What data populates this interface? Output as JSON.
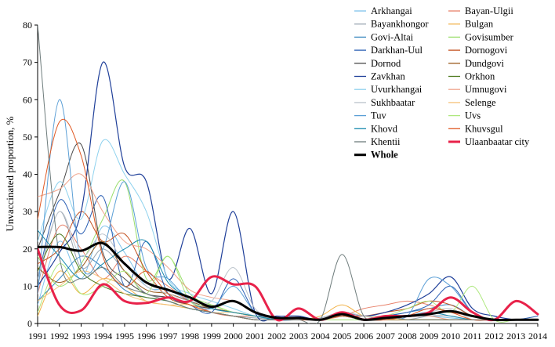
{
  "chart_data": {
    "type": "line",
    "title": "",
    "xlabel": "",
    "ylabel": "Unvaccinated proportion, %",
    "ylim": [
      0,
      80
    ],
    "yticks": [
      0,
      10,
      20,
      30,
      40,
      50,
      60,
      70,
      80
    ],
    "x": [
      1991,
      1992,
      1993,
      1994,
      1995,
      1996,
      1997,
      1998,
      1999,
      2000,
      2001,
      2002,
      2003,
      2004,
      2005,
      2006,
      2007,
      2008,
      2009,
      2010,
      2011,
      2012,
      2013,
      2014
    ],
    "series": [
      {
        "name": "Arkhangai",
        "color": "#7fc3ec",
        "width": 1,
        "values": [
          5,
          22,
          12,
          26,
          19,
          10,
          9,
          6,
          4,
          3,
          2,
          1.5,
          1,
          1,
          2,
          1,
          1,
          2,
          2,
          1.5,
          1,
          1,
          1,
          1
        ]
      },
      {
        "name": "Bayan-Ulgii",
        "color": "#e8826b",
        "width": 1,
        "values": [
          8,
          26,
          20,
          12,
          18,
          14,
          10,
          6,
          3,
          2,
          2,
          1,
          1,
          1,
          2,
          4,
          5,
          6,
          5,
          3,
          2,
          1,
          1,
          1
        ]
      },
      {
        "name": "Bayankhongor",
        "color": "#9aa5b1",
        "width": 1,
        "values": [
          10,
          30,
          15,
          20,
          14,
          8,
          7,
          5,
          3,
          2,
          1.5,
          1,
          1,
          1.5,
          3,
          2,
          1,
          1,
          2,
          2,
          1,
          1,
          1,
          1
        ]
      },
      {
        "name": "Bulgan",
        "color": "#f2b34a",
        "width": 1,
        "values": [
          2,
          14,
          8,
          12,
          10,
          6,
          5,
          4,
          3,
          2,
          1,
          1,
          1,
          2,
          5,
          2,
          2,
          1,
          1,
          1,
          1,
          1,
          1,
          1
        ]
      },
      {
        "name": "Govi-Altai",
        "color": "#3a87bf",
        "width": 1,
        "values": [
          6,
          12,
          18,
          15,
          9,
          7,
          6,
          4,
          3,
          2,
          1,
          1,
          1,
          1,
          2,
          1,
          2,
          3,
          4,
          5,
          2,
          1,
          1,
          1
        ]
      },
      {
        "name": "Govisumber",
        "color": "#99de6b",
        "width": 1,
        "values": [
          18,
          10,
          16,
          28,
          38,
          12,
          18,
          8,
          5,
          3,
          2,
          1,
          1,
          1,
          1,
          1,
          1,
          1,
          1,
          1,
          1,
          1,
          1,
          1
        ]
      },
      {
        "name": "Darkhan-Uul",
        "color": "#2b5fb4",
        "width": 1,
        "values": [
          12,
          33,
          24,
          34,
          10,
          22,
          8,
          5,
          3,
          12,
          3,
          1,
          1,
          1,
          2,
          1,
          2,
          3,
          5,
          10,
          3,
          1,
          1,
          2
        ]
      },
      {
        "name": "Dornogovi",
        "color": "#c3501f",
        "width": 1,
        "values": [
          16,
          20,
          30,
          22,
          24,
          14,
          7,
          5,
          4,
          3,
          2,
          1.5,
          1,
          1,
          2,
          2,
          3,
          4,
          6,
          5,
          2,
          1,
          1,
          1
        ]
      },
      {
        "name": "Dornod",
        "color": "#494949",
        "width": 1,
        "values": [
          20,
          35,
          48,
          19,
          12,
          8,
          7,
          5,
          4,
          3,
          2,
          1,
          1,
          1,
          2,
          1,
          1,
          1,
          1,
          1,
          1,
          1,
          1,
          1
        ]
      },
      {
        "name": "Dundgovi",
        "color": "#9a5a1b",
        "width": 1,
        "values": [
          15,
          11,
          15,
          22,
          14,
          9,
          8,
          6,
          4,
          3,
          2,
          1,
          1,
          1,
          2,
          1,
          1,
          1,
          1,
          1,
          1,
          1,
          1,
          1
        ]
      },
      {
        "name": "Zavkhan",
        "color": "#1f3f99",
        "width": 1.2,
        "values": [
          10,
          19,
          30,
          70,
          42,
          38,
          12,
          25.5,
          8,
          30,
          3,
          2,
          2,
          1,
          3,
          2,
          3,
          5,
          8,
          12.5,
          4,
          2,
          1,
          1
        ]
      },
      {
        "name": "Orkhon",
        "color": "#4d7a1e",
        "width": 1,
        "values": [
          14,
          24,
          14,
          10,
          8,
          7,
          6,
          4,
          3,
          2,
          1,
          1,
          1,
          1,
          2,
          1,
          1,
          1,
          1,
          1,
          1,
          1,
          1,
          1
        ]
      },
      {
        "name": "Uvurkhangai",
        "color": "#8fd2ee",
        "width": 1,
        "values": [
          22,
          38,
          28,
          49,
          40,
          30,
          12,
          8,
          6,
          4,
          2,
          1,
          1,
          1,
          2,
          1,
          1,
          2,
          3,
          2,
          1,
          1,
          1,
          1
        ]
      },
      {
        "name": "Umnugovi",
        "color": "#f0a58d",
        "width": 1,
        "values": [
          34,
          36,
          40,
          30,
          22,
          20,
          15,
          9,
          7,
          6,
          3,
          1,
          1,
          1,
          2,
          1,
          1,
          2,
          2,
          1,
          1,
          1,
          1,
          1
        ]
      },
      {
        "name": "Sukhbaatar",
        "color": "#bcc4cc",
        "width": 1,
        "values": [
          12,
          30,
          18,
          24,
          16,
          10,
          8,
          6,
          6,
          15,
          4,
          1,
          1,
          1,
          3,
          2,
          2,
          2,
          3,
          4,
          1,
          1,
          1,
          1
        ]
      },
      {
        "name": "Selenge",
        "color": "#f6c27a",
        "width": 1,
        "values": [
          6,
          10,
          14,
          12,
          8,
          6,
          5,
          5,
          3,
          3,
          2,
          1,
          1,
          1,
          2,
          1,
          1,
          1,
          1,
          1,
          1,
          1,
          1,
          1
        ]
      },
      {
        "name": "Tuv",
        "color": "#5b9fd6",
        "width": 1,
        "values": [
          8,
          60,
          16,
          20,
          38,
          15,
          12,
          6,
          4,
          10,
          3,
          1,
          1,
          1,
          2,
          1,
          2,
          2,
          12,
          10,
          3,
          1,
          1,
          1
        ]
      },
      {
        "name": "Uvs",
        "color": "#aee87e",
        "width": 1,
        "values": [
          3,
          16,
          8,
          10,
          14,
          8,
          18,
          6,
          5,
          3,
          2,
          1,
          1,
          1,
          2,
          1,
          2,
          4,
          6,
          3,
          10,
          1,
          1,
          1
        ]
      },
      {
        "name": "Khovd",
        "color": "#1688ad",
        "width": 1,
        "values": [
          25,
          18,
          12,
          16,
          20,
          22,
          11,
          7,
          4,
          3,
          2,
          1,
          1,
          1,
          2,
          1,
          1,
          2,
          3,
          2,
          1,
          1,
          1,
          1
        ]
      },
      {
        "name": "Khuvsgul",
        "color": "#e05a25",
        "width": 1,
        "values": [
          28,
          54,
          45,
          18,
          10,
          14,
          8,
          5,
          3,
          2,
          1,
          1,
          1,
          1,
          2,
          1,
          1,
          2,
          4,
          3,
          1,
          1,
          1,
          1
        ]
      },
      {
        "name": "Khentii",
        "color": "#6e7c7c",
        "width": 1,
        "values": [
          80,
          18,
          12,
          15,
          10,
          8,
          6,
          4,
          3,
          2,
          1,
          1,
          1,
          1,
          18.5,
          2,
          2,
          1,
          1,
          1,
          1,
          1,
          1,
          1
        ]
      },
      {
        "name": "Ulaanbaatar city",
        "color": "#e8224a",
        "width": 3,
        "values": [
          20,
          5,
          3.5,
          10.5,
          6,
          5.5,
          7,
          6,
          12.5,
          10.5,
          10,
          1,
          4,
          1,
          3,
          1,
          2,
          2,
          3,
          7,
          3,
          1,
          6,
          2.5
        ]
      },
      {
        "name": "Whole",
        "color": "#000000",
        "width": 3,
        "values": [
          20.5,
          20.5,
          19.5,
          21.5,
          16,
          11,
          9,
          7,
          4.5,
          6,
          3,
          1.5,
          1.5,
          1,
          2.5,
          1,
          1.5,
          2,
          2.5,
          3.3,
          2,
          1,
          1,
          1
        ]
      }
    ],
    "legend": {
      "position": "top-right",
      "columns": [
        [
          "Arkhangai",
          "Bayankhongor",
          "Govi-Altai",
          "Darkhan-Uul",
          "Dornod",
          "Zavkhan",
          "Uvurkhangai",
          "Sukhbaatar",
          "Tuv",
          "Khovd",
          "Khentii",
          "Whole"
        ],
        [
          "Bayan-Ulgii",
          "Bulgan",
          "Govisumber",
          "Dornogovi",
          "Dundgovi",
          "Orkhon",
          "Umnugovi",
          "Selenge",
          "Uvs",
          "Khuvsgul",
          "Ulaanbaatar city"
        ]
      ]
    }
  }
}
